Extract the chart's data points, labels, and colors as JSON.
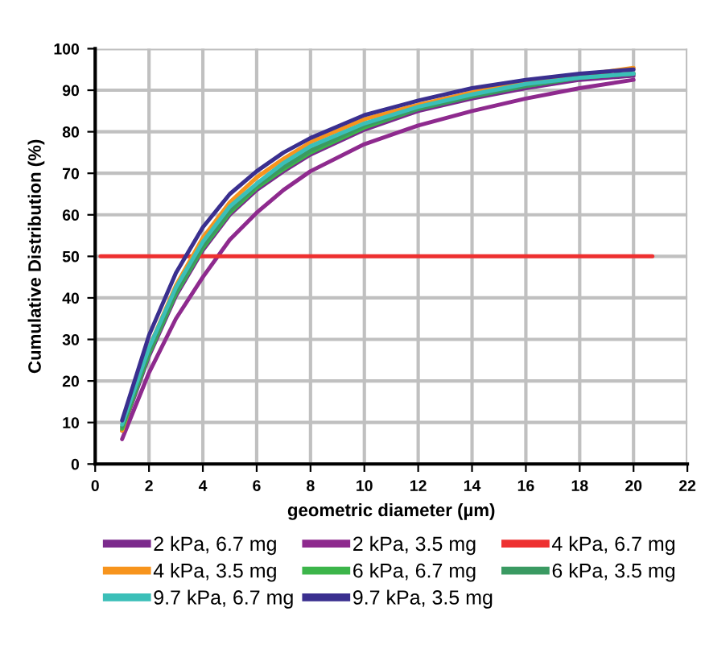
{
  "chart_data": {
    "type": "line",
    "xlabel": "geometric diameter (µm)",
    "ylabel": "Cumulative Distribution (%)",
    "x": [
      1,
      2,
      3,
      4,
      5,
      6,
      7,
      8,
      10,
      12,
      14,
      16,
      18,
      20
    ],
    "series": [
      {
        "name": "2 kPa, 6.7 mg",
        "color": "#7b2a8c",
        "values": [
          8,
          26,
          40.5,
          51.5,
          60,
          66,
          70.5,
          74.5,
          80.5,
          85,
          88,
          90.5,
          92.5,
          93.5
        ]
      },
      {
        "name": "2 kPa, 3.5 mg",
        "color": "#8e2a8e",
        "values": [
          6,
          22,
          35,
          45,
          54,
          60.5,
          66,
          70.5,
          77,
          81.5,
          85,
          88,
          90.5,
          92.5
        ]
      },
      {
        "name": "4 kPa, 6.7 mg",
        "color": "#ee3030",
        "x": [
          0.2,
          20.7
        ],
        "values": [
          50,
          50
        ]
      },
      {
        "name": "4 kPa, 3.5 mg",
        "color": "#f7941d",
        "values": [
          8,
          28,
          43,
          54.5,
          63,
          69,
          73.5,
          77.5,
          83,
          86.5,
          89.5,
          92,
          93.6,
          95.4
        ]
      },
      {
        "name": "6 kPa, 6.7 mg",
        "color": "#3cb54a",
        "values": [
          8.5,
          26.5,
          41,
          52,
          60.5,
          66.5,
          71,
          75,
          81,
          85.5,
          88.5,
          91,
          93,
          94
        ]
      },
      {
        "name": "6 kPa, 3.5 mg",
        "color": "#3a9a62",
        "values": [
          9,
          27,
          41.5,
          52.5,
          61,
          67,
          71.5,
          75.5,
          81.5,
          85.5,
          88.5,
          91,
          93,
          94
        ]
      },
      {
        "name": "9.7 kPa, 6.7 mg",
        "color": "#3bbfb8",
        "values": [
          9.5,
          28,
          42.5,
          53.5,
          62,
          67.5,
          72.5,
          76.5,
          82,
          86,
          89,
          91.5,
          93,
          94
        ]
      },
      {
        "name": "9.7 kPa, 3.5 mg",
        "color": "#3a2f8f",
        "values": [
          10.5,
          31,
          46,
          57,
          65,
          70.5,
          75,
          78.5,
          84,
          87.5,
          90.5,
          92.5,
          94,
          95
        ]
      }
    ],
    "xlim": [
      0,
      22
    ],
    "xticks": [
      0,
      2,
      4,
      6,
      8,
      10,
      12,
      14,
      16,
      18,
      20,
      22
    ],
    "ylim": [
      0,
      100
    ],
    "yticks": [
      0,
      10,
      20,
      30,
      40,
      50,
      60,
      70,
      80,
      90,
      100
    ],
    "grid": true,
    "legend": "bottom",
    "marker": "none",
    "line_style": "solid"
  }
}
